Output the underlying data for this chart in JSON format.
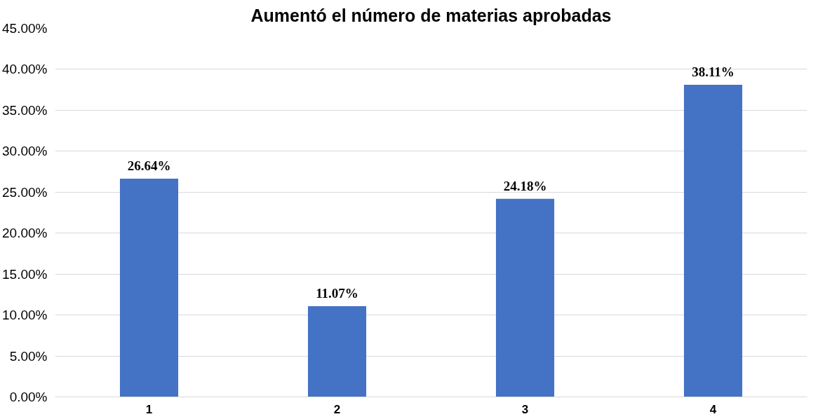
{
  "chart_data": {
    "type": "bar",
    "title": "Aumentó el número de materias aprobadas",
    "categories": [
      "1",
      "2",
      "3",
      "4"
    ],
    "values": [
      26.64,
      11.07,
      24.18,
      38.11
    ],
    "value_labels": [
      "26.64%",
      "11.07%",
      "24.18%",
      "38.11%"
    ],
    "color": "#4472c4",
    "ylim": [
      0,
      45
    ],
    "yticks": [
      {
        "value": 0,
        "label": "0.00%"
      },
      {
        "value": 5,
        "label": "5.00%"
      },
      {
        "value": 10,
        "label": "10.00%"
      },
      {
        "value": 15,
        "label": "15.00%"
      },
      {
        "value": 20,
        "label": "20.00%"
      },
      {
        "value": 25,
        "label": "25.00%"
      },
      {
        "value": 30,
        "label": "30.00%"
      },
      {
        "value": 35,
        "label": "35.00%"
      },
      {
        "value": 40,
        "label": "40.00%"
      },
      {
        "value": 45,
        "label": "45.00%"
      }
    ],
    "grid": "y"
  }
}
